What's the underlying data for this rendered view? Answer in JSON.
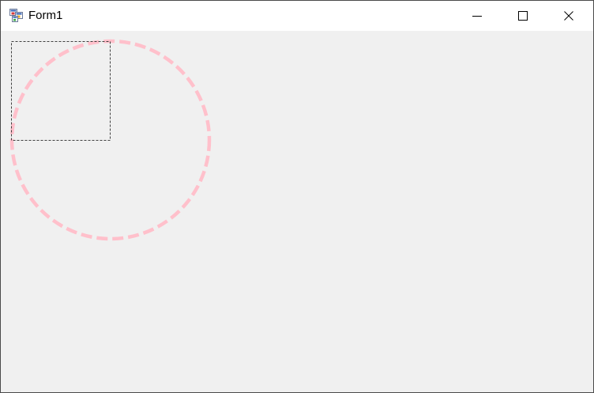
{
  "window": {
    "title": "Form1"
  },
  "icons": {
    "app": "winforms-app-icon",
    "minimize": "minimize-icon",
    "maximize": "maximize-icon",
    "close": "close-icon"
  },
  "drawing": {
    "circle_color": "#ffc0cb",
    "rect_color": "#404040",
    "client_bg": "#f0f0f0"
  }
}
